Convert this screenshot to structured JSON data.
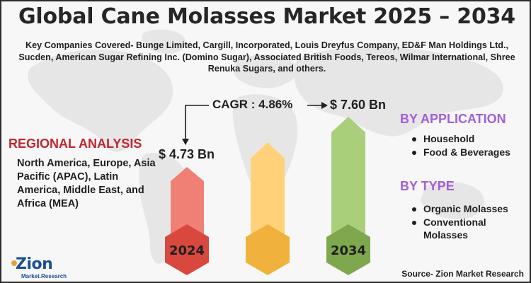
{
  "title": "Global Cane Molasses Market 2025 – 2034",
  "companies_text": "Key Companies Covered- Bunge Limited, Cargill, Incorporated, Louis Dreyfus Company, ED&F Man Holdings Ltd., Sucden, American Sugar Refining Inc. (Domino Sugar), Associated British Foods, Tereos, Wilmar International, Shree Renuka Sugars, and others.",
  "cagr": "CAGR : 4.86%",
  "value_start": "$ 4.73 Bn",
  "value_end": "$ 7.60 Bn",
  "year_start": "2024",
  "year_end": "2034",
  "regional": {
    "title": "REGIONAL ANALYSIS",
    "body": "North America, Europe, Asia Pacific (APAC), Latin America, Middle East, and Africa (MEA)"
  },
  "by_application": {
    "title": "BY APPLICATION",
    "items": [
      "Household",
      "Food & Beverages"
    ]
  },
  "by_type": {
    "title": "BY TYPE",
    "items": [
      "Organic Molasses",
      "Conventional Molasses"
    ]
  },
  "source": "Source- Zion Market Research",
  "logo": {
    "word": "Zion",
    "sub": "Market.Research"
  },
  "colors": {
    "bar_left": "#f08075",
    "bar_left_dark": "#d9483f",
    "bar_mid": "#ffd27a",
    "bar_mid_dark": "#f0b23c",
    "bar_right": "#a9cf7a",
    "bar_right_dark": "#7fa84e",
    "regional_title": "#c0262d",
    "section_title": "#a35fd6"
  }
}
